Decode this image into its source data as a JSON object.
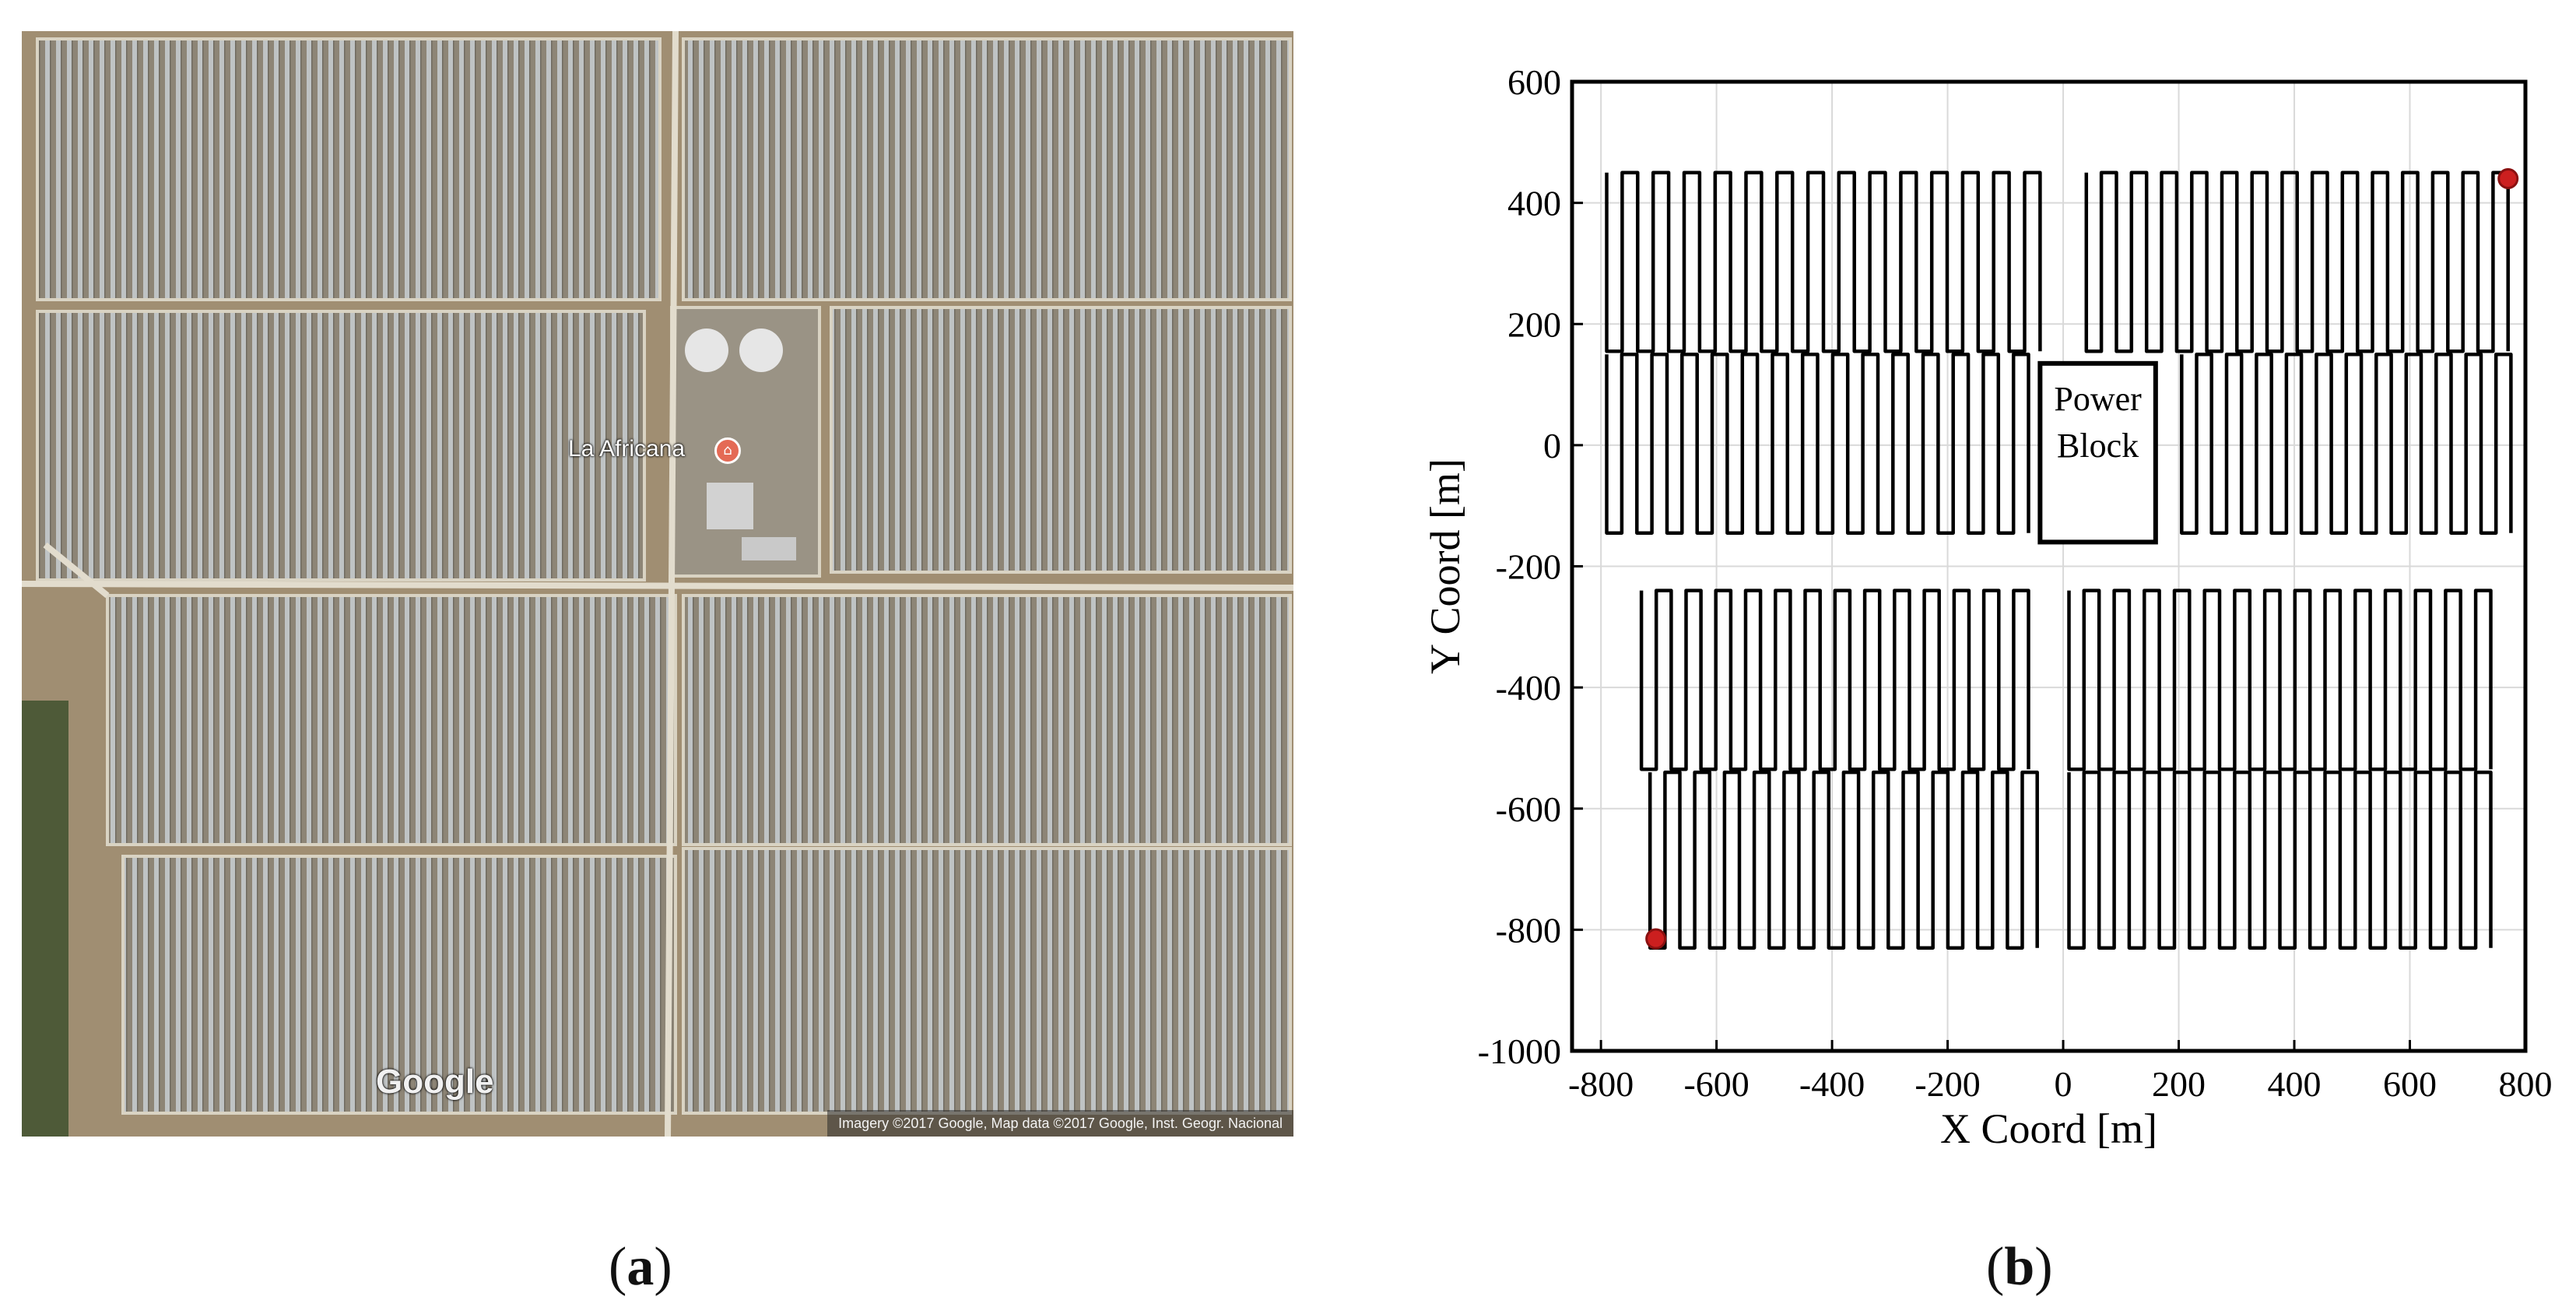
{
  "panel_a": {
    "caption_open": "(",
    "caption_letter": "a",
    "caption_close": ")",
    "place_label": "La Africana",
    "logo_text": "Google",
    "attribution": "Imagery ©2017 Google, Map data ©2017 Google, Inst. Geogr. Nacional"
  },
  "panel_b": {
    "caption_open": "(",
    "caption_letter": "b",
    "caption_close": ")",
    "xlabel": "X Coord [m]",
    "ylabel": "Y Coord [m]",
    "xlim": [
      -850,
      800
    ],
    "ylim": [
      -1000,
      600
    ],
    "xticks": [
      -800,
      -600,
      -400,
      -200,
      0,
      200,
      400,
      600,
      800
    ],
    "yticks": [
      -1000,
      -800,
      -600,
      -400,
      -200,
      0,
      200,
      400,
      600
    ],
    "grid": true,
    "line_color": "#000000",
    "marker_color": "#cc1f1f",
    "power_block": {
      "label_line1": "Power",
      "label_line2": "Block",
      "x": [
        -40,
        160
      ],
      "y": [
        -160,
        135
      ]
    },
    "loops": [
      {
        "x_start": -790,
        "x_end": -40,
        "n_turns": 28,
        "y_top": 450,
        "y_bottom": 155
      },
      {
        "x_start": 40,
        "x_end": 770,
        "n_turns": 28,
        "y_top": 450,
        "y_bottom": 155
      },
      {
        "x_start": -790,
        "x_end": -60,
        "n_turns": 28,
        "y_top": 150,
        "y_bottom": -145
      },
      {
        "x_start": 205,
        "x_end": 775,
        "n_turns": 22,
        "y_top": 150,
        "y_bottom": -145
      },
      {
        "x_start": -730,
        "x_end": -60,
        "n_turns": 26,
        "y_top": -240,
        "y_bottom": -535
      },
      {
        "x_start": 10,
        "x_end": 740,
        "n_turns": 28,
        "y_top": -240,
        "y_bottom": -535
      },
      {
        "x_start": -715,
        "x_end": -45,
        "n_turns": 26,
        "y_top": -540,
        "y_bottom": -830
      },
      {
        "x_start": 10,
        "x_end": 740,
        "n_turns": 28,
        "y_top": -540,
        "y_bottom": -830
      }
    ],
    "endpoints": [
      {
        "x": 770,
        "y": 440
      },
      {
        "x": -705,
        "y": -815
      }
    ]
  }
}
